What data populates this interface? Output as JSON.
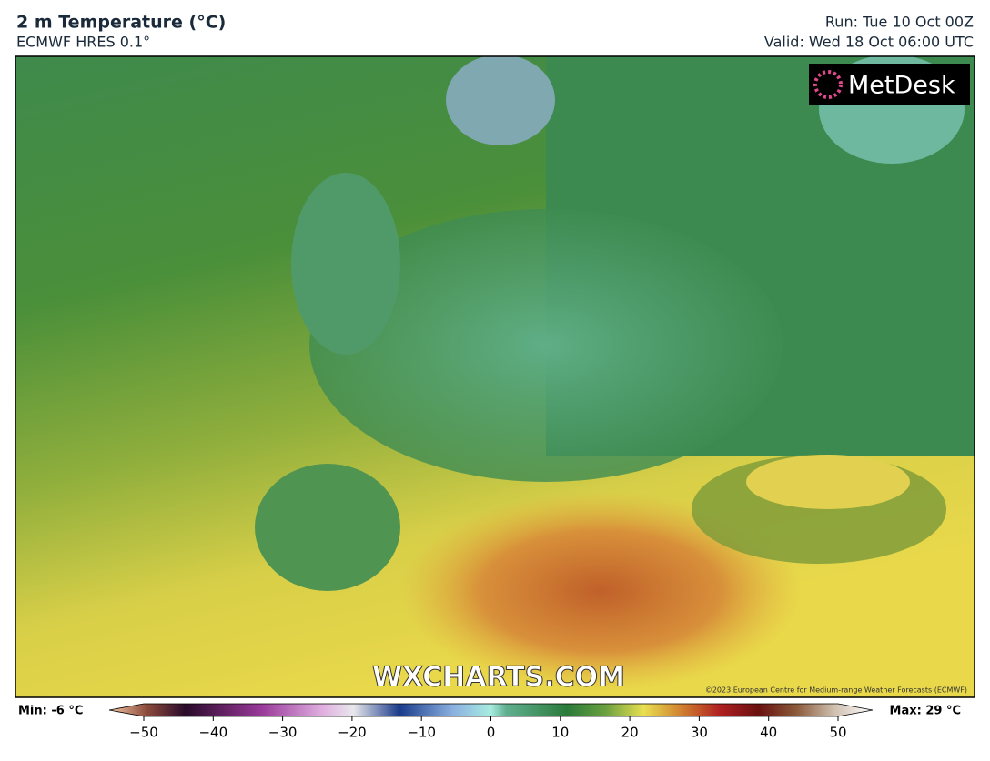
{
  "header": {
    "title": "2 m Temperature (°C)",
    "subtitle": "ECMWF HRES 0.1°",
    "run": "Run: Tue 10 Oct 00Z",
    "valid": "Valid: Wed 18 Oct 06:00 UTC"
  },
  "map": {
    "logo": "MetDesk",
    "watermark": "WXCHARTS.COM",
    "copyright": "©2023 European Centre for Medium-range Weather Forecasts (ECMWF)"
  },
  "colorbar": {
    "min_label": "Min: -6 °C",
    "max_label": "Max: 29 °C",
    "range": [
      -50,
      50
    ],
    "ticks": [
      {
        "value": -50,
        "label": "−50"
      },
      {
        "value": -40,
        "label": "−40"
      },
      {
        "value": -30,
        "label": "−30"
      },
      {
        "value": -20,
        "label": "−20"
      },
      {
        "value": -10,
        "label": "−10"
      },
      0,
      10,
      20,
      30,
      40,
      50
    ]
  }
}
